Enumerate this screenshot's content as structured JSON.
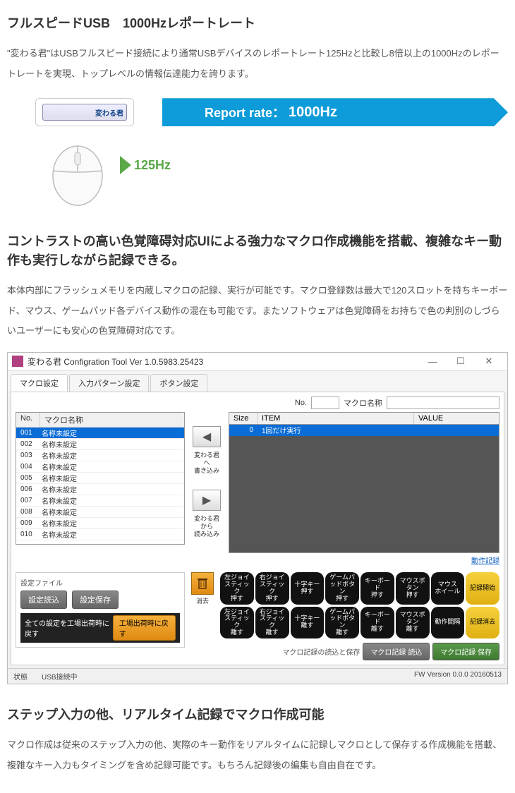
{
  "section1": {
    "title": "フルスピードUSB　1000Hzレポートレート",
    "body": "\"変わる君\"はUSBフルスピード接続により通常USBデバイスのレポートレート125Hzと比較し8倍以上の1000Hzのレポートレートを実現、トップレベルの情報伝達能力を誇ります。",
    "device_label": "変わる君",
    "banner_label": "Report rate：",
    "banner_value": "1000Hz",
    "banner_bg": "#0d9bd9",
    "mouse_rate": "125Hz",
    "mouse_rate_color": "#5aa847"
  },
  "section2": {
    "title": "コントラストの高い色覚障碍対応UIによる強力なマクロ作成機能を搭載、複雑なキー動作も実行しながら記録できる。",
    "body": "本体内部にフラッシュメモリを内蔵しマクロの記録、実行が可能です。マクロ登録数は最大で120スロットを持ちキーボード、マウス、ゲームパッド各デバイス動作の混在も可能です。またソフトウェアは色覚障碍をお持ちで色の判別のしづらいユーザーにも安心の色覚障碍対応です。"
  },
  "app": {
    "title": "変わる君 Configration Tool Ver 1.0.5983.25423",
    "tabs": [
      "マクロ設定",
      "入力パターン設定",
      "ボタン設定"
    ],
    "active_tab": 0,
    "no_label": "No.",
    "macro_name_label": "マクロ名称",
    "left_header_no": "No.",
    "left_header_name": "マクロ名称",
    "rows": [
      {
        "no": "001",
        "name": "名称未設定",
        "sel": true
      },
      {
        "no": "002",
        "name": "名称未設定"
      },
      {
        "no": "003",
        "name": "名称未設定"
      },
      {
        "no": "004",
        "name": "名称未設定"
      },
      {
        "no": "005",
        "name": "名称未設定"
      },
      {
        "no": "006",
        "name": "名称未設定"
      },
      {
        "no": "007",
        "name": "名称未設定"
      },
      {
        "no": "008",
        "name": "名称未設定"
      },
      {
        "no": "009",
        "name": "名称未設定"
      },
      {
        "no": "010",
        "name": "名称未設定"
      }
    ],
    "mid_btn1_label": "変わる君\nへ\n書き込み",
    "mid_btn2_label": "変わる君\nから\n読み込み",
    "right_headers": {
      "size": "Size",
      "item": "ITEM",
      "value": "VALUE"
    },
    "right_row": {
      "size": "0",
      "item": "1回だけ実行",
      "value": ""
    },
    "link_record": "動作記録",
    "settings_label": "設定ファイル",
    "btn_load": "設定読込",
    "btn_save": "設定保存",
    "blackbar_label": "全ての設定を工場出荷時に戻す",
    "orange_btn": "工場出荷時に戻す",
    "trash_label": "消去",
    "pill_rows": [
      [
        "左ジョイスティック\n押す",
        "右ジョイスティック\n押す",
        "十字キー\n押す",
        "ゲームパッドボタン\n押す",
        "キーボード\n押す",
        "マウスボタン\n押す",
        "マウス\nホイール",
        "記録開始"
      ],
      [
        "左ジョイスティック\n離す",
        "右ジョイスティック\n離す",
        "十字キー\n離す",
        "ゲームパッドボタン\n離す",
        "キーボード\n離す",
        "マウスボタン\n離す",
        "動作間隔",
        "記録消去"
      ]
    ],
    "pill_yellow_cols": [
      7
    ],
    "record_label": "マクロ記録の読込と保存",
    "rec_load": "マクロ記録 読込",
    "rec_save": "マクロ記録 保存",
    "status_left_label": "状態",
    "status_left_value": "USB接続中",
    "status_right": "FW Version 0.0.0 20160513"
  },
  "section3": {
    "title": "ステップ入力の他、リアルタイム記録でマクロ作成可能",
    "body": "マクロ作成は従来のステップ入力の他、実際のキー動作をリアルタイムに記録しマクロとして保存する作成機能を搭載、複雑なキー入力もタイミングを含め記録可能です。もちろん記録後の編集も自由自在です。"
  }
}
